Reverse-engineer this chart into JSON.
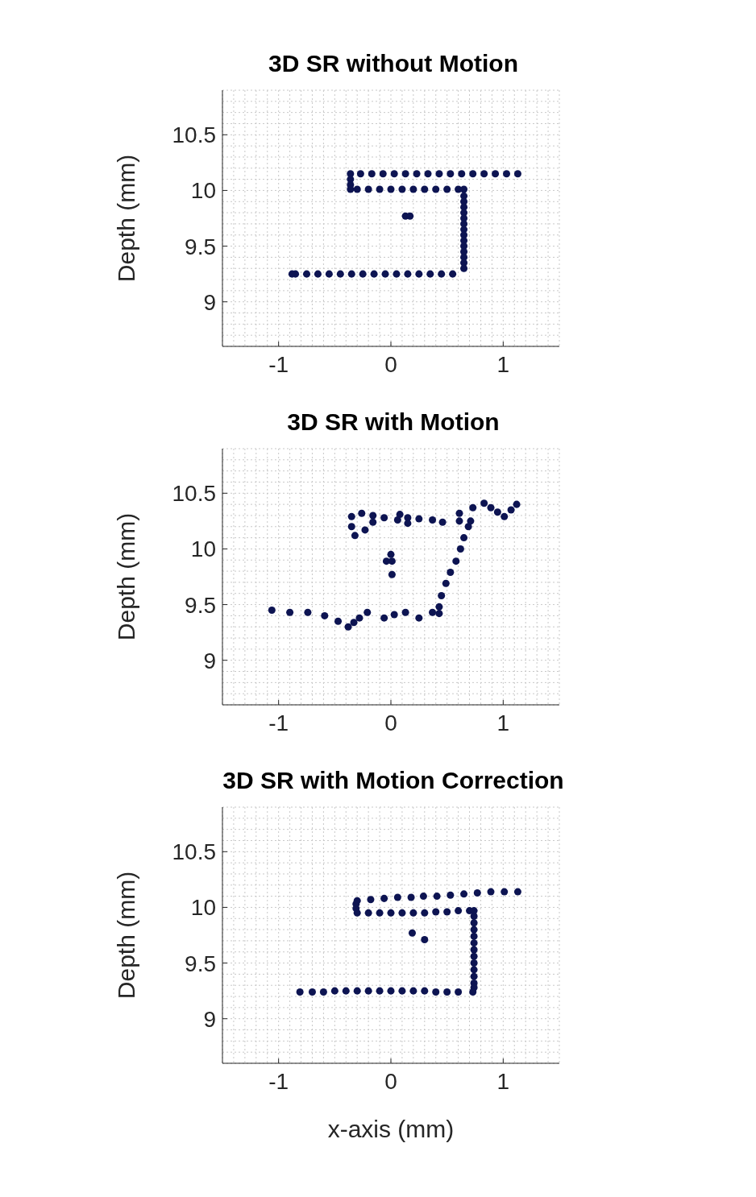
{
  "chart_data": [
    {
      "type": "scatter",
      "title": "3D SR without Motion",
      "ylabel": "Depth (mm)",
      "xlim": [
        -1.5,
        1.5
      ],
      "ylim": [
        8.6,
        10.9
      ],
      "xticks": [
        -1,
        0,
        1
      ],
      "yticks": [
        9,
        9.5,
        10,
        10.5
      ],
      "grid": true,
      "marker": "circle",
      "color": "#0d1452",
      "x": [
        1.13,
        1.03,
        0.93,
        0.83,
        0.73,
        0.63,
        0.53,
        0.43,
        0.33,
        0.23,
        0.13,
        0.03,
        -0.07,
        -0.17,
        -0.27,
        -0.36,
        -0.36,
        -0.36,
        -0.36,
        -0.3,
        -0.2,
        -0.1,
        0,
        0.1,
        0.2,
        0.3,
        0.4,
        0.5,
        0.6,
        0.65,
        0.65,
        0.65,
        0.65,
        0.65,
        0.65,
        0.65,
        0.65,
        0.65,
        0.65,
        0.65,
        0.65,
        0.65,
        0.65,
        0.65,
        0.55,
        0.45,
        0.35,
        0.25,
        0.15,
        0.05,
        -0.05,
        -0.15,
        -0.25,
        -0.35,
        -0.45,
        -0.55,
        -0.65,
        -0.75,
        -0.85,
        -0.88,
        0.13,
        0.17
      ],
      "values": [
        10.15,
        10.15,
        10.15,
        10.15,
        10.15,
        10.15,
        10.15,
        10.15,
        10.15,
        10.15,
        10.15,
        10.15,
        10.15,
        10.15,
        10.15,
        10.15,
        10.1,
        10.05,
        10.01,
        10.01,
        10.01,
        10.01,
        10.01,
        10.01,
        10.01,
        10.01,
        10.01,
        10.01,
        10.01,
        10.01,
        9.95,
        9.9,
        9.85,
        9.8,
        9.75,
        9.7,
        9.65,
        9.6,
        9.55,
        9.5,
        9.45,
        9.4,
        9.35,
        9.3,
        9.25,
        9.25,
        9.25,
        9.25,
        9.25,
        9.25,
        9.25,
        9.25,
        9.25,
        9.25,
        9.25,
        9.25,
        9.25,
        9.25,
        9.25,
        9.25,
        9.77,
        9.77
      ]
    },
    {
      "type": "scatter",
      "title": "3D SR with Motion",
      "ylabel": "Depth (mm)",
      "xlim": [
        -1.5,
        1.5
      ],
      "ylim": [
        8.6,
        10.9
      ],
      "xticks": [
        -1,
        0,
        1
      ],
      "yticks": [
        9,
        9.5,
        10,
        10.5
      ],
      "grid": true,
      "marker": "circle",
      "color": "#0d1452",
      "x": [
        -1.06,
        -0.9,
        -0.74,
        -0.59,
        -0.47,
        -0.38,
        -0.33,
        -0.28,
        -0.21,
        -0.06,
        0.03,
        0.13,
        0.25,
        0.37,
        0.43,
        0.43,
        0.45,
        0.49,
        0.53,
        0.58,
        0.62,
        0.65,
        0.69,
        0.71,
        0.61,
        0.46,
        0.37,
        0.25,
        0.15,
        0.15,
        0.08,
        0.06,
        -0.06,
        -0.16,
        -0.23,
        -0.32,
        -0.35,
        -0.35,
        -0.26,
        -0.16,
        0.61,
        0.73,
        0.83,
        0.89,
        0.95,
        1.01,
        1.07,
        1.12,
        0,
        -0.04,
        0.01,
        0.01
      ],
      "values": [
        9.45,
        9.43,
        9.43,
        9.4,
        9.35,
        9.3,
        9.34,
        9.38,
        9.43,
        9.38,
        9.41,
        9.43,
        9.38,
        9.43,
        9.42,
        9.48,
        9.58,
        9.69,
        9.79,
        9.89,
        10,
        10.1,
        10.2,
        10.25,
        10.25,
        10.24,
        10.26,
        10.27,
        10.28,
        10.23,
        10.31,
        10.26,
        10.28,
        10.24,
        10.17,
        10.12,
        10.29,
        10.2,
        10.32,
        10.3,
        10.32,
        10.37,
        10.41,
        10.37,
        10.33,
        10.29,
        10.35,
        10.4,
        9.95,
        9.89,
        9.89,
        9.77
      ]
    },
    {
      "type": "scatter",
      "title": "3D SR with Motion Correction",
      "xlabel": "x-axis (mm)",
      "ylabel": "Depth (mm)",
      "xlim": [
        -1.5,
        1.5
      ],
      "ylim": [
        8.6,
        10.9
      ],
      "xticks": [
        -1,
        0,
        1
      ],
      "yticks": [
        9,
        9.5,
        10,
        10.5
      ],
      "grid": true,
      "marker": "circle",
      "color": "#0d1452",
      "x": [
        1.13,
        1.01,
        0.89,
        0.77,
        0.65,
        0.53,
        0.41,
        0.29,
        0.18,
        0.06,
        -0.06,
        -0.18,
        -0.3,
        -0.31,
        -0.31,
        -0.3,
        -0.2,
        -0.1,
        0,
        0.1,
        0.2,
        0.3,
        0.4,
        0.5,
        0.6,
        0.7,
        0.74,
        0.74,
        0.74,
        0.74,
        0.74,
        0.74,
        0.74,
        0.74,
        0.74,
        0.74,
        0.74,
        0.74,
        0.74,
        0.73,
        0.6,
        0.5,
        0.4,
        0.3,
        0.2,
        0.1,
        0,
        -0.1,
        -0.2,
        -0.3,
        -0.4,
        -0.5,
        -0.6,
        -0.7,
        -0.81,
        0.19,
        0.3
      ],
      "values": [
        10.14,
        10.14,
        10.14,
        10.13,
        10.12,
        10.11,
        10.1,
        10.1,
        10.09,
        10.09,
        10.08,
        10.07,
        10.06,
        10.03,
        9.99,
        9.95,
        9.95,
        9.95,
        9.95,
        9.95,
        9.95,
        9.95,
        9.96,
        9.96,
        9.97,
        9.97,
        9.97,
        9.92,
        9.86,
        9.8,
        9.74,
        9.68,
        9.62,
        9.56,
        9.5,
        9.44,
        9.38,
        9.32,
        9.28,
        9.24,
        9.24,
        9.24,
        9.24,
        9.25,
        9.25,
        9.25,
        9.25,
        9.25,
        9.25,
        9.25,
        9.25,
        9.25,
        9.24,
        9.24,
        9.24,
        9.77,
        9.71
      ]
    }
  ]
}
